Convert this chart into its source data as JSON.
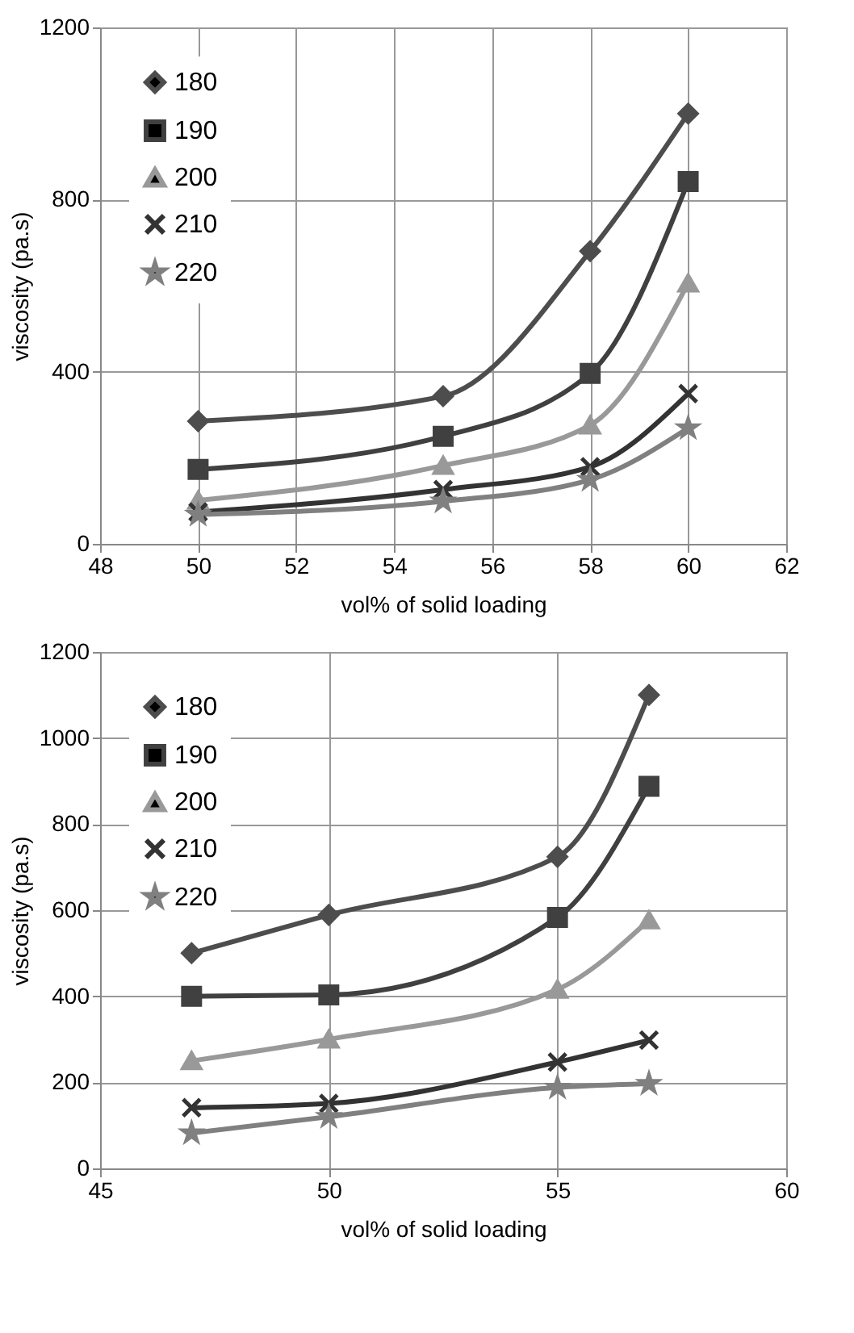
{
  "chart_data": [
    {
      "type": "line",
      "xlabel": "vol% of solid loading",
      "ylabel": "viscosity (pa.s)",
      "xlim": [
        48,
        62
      ],
      "xticks": [
        48,
        50,
        52,
        54,
        56,
        58,
        60,
        62
      ],
      "ylim": [
        0,
        1200
      ],
      "yticks": [
        0,
        400,
        800,
        1200
      ],
      "grid": true,
      "legend": "top left",
      "x": [
        50,
        55,
        58,
        60
      ],
      "series": [
        {
          "name": "180",
          "color": "#4d4d4d",
          "marker": "diamond",
          "values": [
            285,
            343,
            680,
            1000
          ]
        },
        {
          "name": "190",
          "color": "#404040",
          "marker": "square",
          "values": [
            173,
            250,
            396,
            842
          ]
        },
        {
          "name": "200",
          "color": "#999999",
          "marker": "triangle",
          "values": [
            101,
            182,
            276,
            606
          ]
        },
        {
          "name": "210",
          "color": "#333333",
          "marker": "cross",
          "values": [
            74,
            126,
            179,
            349
          ]
        },
        {
          "name": "220",
          "color": "#808080",
          "marker": "star",
          "values": [
            68,
            99,
            149,
            269
          ]
        }
      ]
    },
    {
      "type": "line",
      "xlabel": "vol% of solid loading",
      "ylabel": "viscosity (pa.s)",
      "xlim": [
        45,
        60
      ],
      "xticks": [
        45,
        50,
        55,
        60
      ],
      "ylim": [
        0,
        1200
      ],
      "yticks": [
        0,
        200,
        400,
        600,
        800,
        1000,
        1200
      ],
      "grid": true,
      "legend": "top left",
      "x": [
        47,
        50,
        55,
        57
      ],
      "series": [
        {
          "name": "180",
          "color": "#4d4d4d",
          "marker": "diamond",
          "values": [
            500,
            589,
            724,
            1100
          ]
        },
        {
          "name": "190",
          "color": "#404040",
          "marker": "square",
          "values": [
            400,
            403,
            583,
            888
          ]
        },
        {
          "name": "200",
          "color": "#999999",
          "marker": "triangle",
          "values": [
            250,
            300,
            416,
            577
          ]
        },
        {
          "name": "210",
          "color": "#333333",
          "marker": "cross",
          "values": [
            141,
            151,
            247,
            298
          ]
        },
        {
          "name": "220",
          "color": "#808080",
          "marker": "star",
          "values": [
            82,
            120,
            188,
            197
          ]
        }
      ]
    }
  ]
}
